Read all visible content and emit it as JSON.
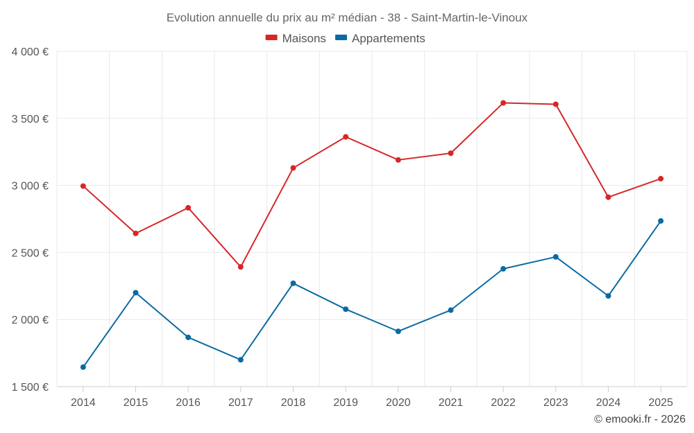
{
  "chart_data": {
    "type": "line",
    "title": "Evolution annuelle du prix au m² médian - 38 - Saint-Martin-le-Vinoux",
    "categories": [
      "2014",
      "2015",
      "2016",
      "2017",
      "2018",
      "2019",
      "2020",
      "2021",
      "2022",
      "2023",
      "2024",
      "2025"
    ],
    "series": [
      {
        "name": "Maisons",
        "color": "#d62728",
        "values": [
          2995,
          2642,
          2833,
          2392,
          3130,
          3362,
          3190,
          3240,
          3615,
          3605,
          2912,
          3050
        ]
      },
      {
        "name": "Appartements",
        "color": "#0b6aa2",
        "values": [
          1645,
          2200,
          1867,
          1700,
          2270,
          2077,
          1912,
          2070,
          2378,
          2467,
          2176,
          2735
        ]
      }
    ],
    "yticks": [
      "1 500 €",
      "2 000 €",
      "2 500 €",
      "3 000 €",
      "3 500 €",
      "4 000 €"
    ],
    "ytick_values": [
      1500,
      2000,
      2500,
      3000,
      3500,
      4000
    ],
    "ylim": [
      1500,
      4000
    ],
    "xlabel": "",
    "ylabel": "",
    "legend_position": "top-center",
    "grid": true
  },
  "credit": "© emooki.fr - 2026"
}
